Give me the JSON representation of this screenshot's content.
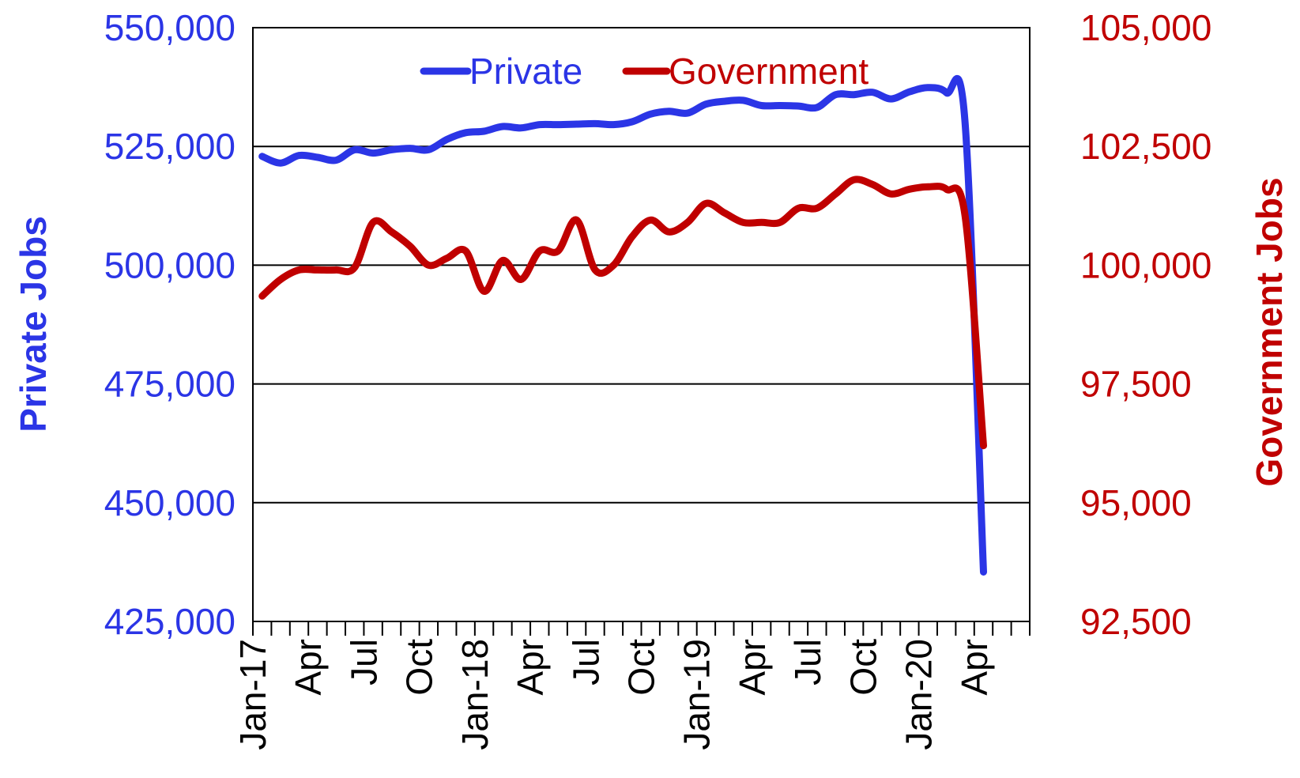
{
  "chart_data": {
    "type": "line",
    "ylabel_left": "Private Jobs",
    "ylabel_right": "Government Jobs",
    "y_left_ticks": [
      "425,000",
      "450,000",
      "475,000",
      "500,000",
      "525,000",
      "550,000"
    ],
    "y_right_ticks": [
      "92,500",
      "95,000",
      "97,500",
      "100,000",
      "102,500",
      "105,000"
    ],
    "ylim_left": [
      425000,
      550000
    ],
    "ylim_right": [
      92500,
      105000
    ],
    "x_tick_labels": [
      {
        "label": "Jan-17",
        "month": 0
      },
      {
        "label": "Apr",
        "month": 3
      },
      {
        "label": "Jul",
        "month": 6
      },
      {
        "label": "Oct",
        "month": 9
      },
      {
        "label": "Jan-18",
        "month": 12
      },
      {
        "label": "Apr",
        "month": 15
      },
      {
        "label": "Jul",
        "month": 18
      },
      {
        "label": "Oct",
        "month": 21
      },
      {
        "label": "Jan-19",
        "month": 24
      },
      {
        "label": "Apr",
        "month": 27
      },
      {
        "label": "Jul",
        "month": 30
      },
      {
        "label": "Oct",
        "month": 33
      },
      {
        "label": "Jan-20",
        "month": 36
      },
      {
        "label": "Apr",
        "month": 39
      }
    ],
    "x_month_count": 42,
    "grid": "horizontal",
    "legend_position": "top",
    "series": [
      {
        "name": "Private",
        "axis": "left",
        "color": "#2b35e6",
        "values": [
          522900,
          521500,
          523100,
          522700,
          522100,
          524300,
          523600,
          524300,
          524600,
          524300,
          526500,
          527900,
          528200,
          529200,
          528900,
          529600,
          529600,
          529700,
          529800,
          529600,
          530200,
          531800,
          532400,
          532000,
          533900,
          534500,
          534700,
          533600,
          533600,
          533500,
          533200,
          535900,
          535900,
          536400,
          535000,
          536500,
          537400,
          536300,
          530200,
          435400
        ]
      },
      {
        "name": "Government",
        "axis": "right",
        "color": "#c00000",
        "values": [
          99350,
          99700,
          99900,
          99900,
          99900,
          99950,
          100900,
          100700,
          100400,
          100000,
          100150,
          100300,
          99450,
          100100,
          99700,
          100300,
          100300,
          100950,
          99900,
          100000,
          100600,
          100950,
          100700,
          100900,
          101300,
          101100,
          100900,
          100900,
          100900,
          101200,
          101200,
          101500,
          101800,
          101700,
          101500,
          101600,
          101650,
          101600,
          101050,
          96200
        ]
      }
    ]
  }
}
